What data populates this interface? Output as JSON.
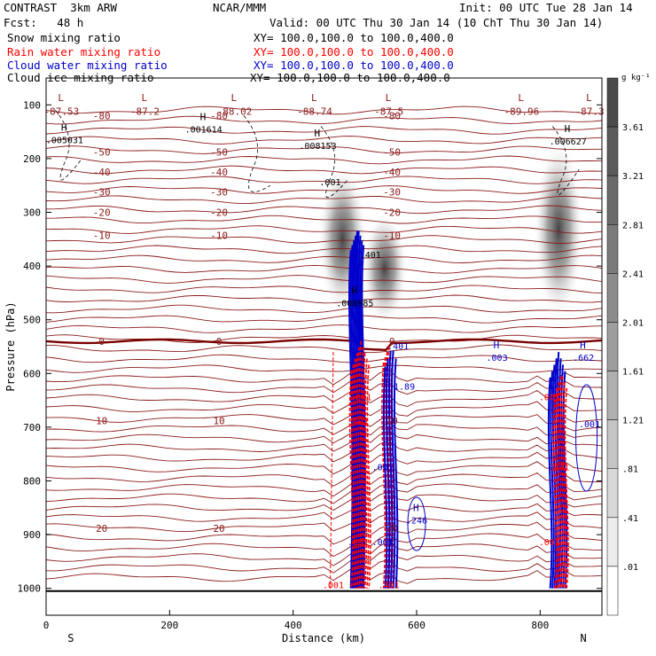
{
  "header": {
    "experiment": "CONTRAST  3km ARW",
    "forecast": "Fcst:   48 h",
    "center": "NCAR/MMM",
    "init": "Init: 00 UTC Tue 28 Jan 14",
    "valid": "Valid: 00 UTC Thu 30 Jan 14 (10 ChT Thu 30 Jan 14)"
  },
  "fields": [
    {
      "label": "Snow mixing ratio",
      "xy": "XY= 100.0,100.0 to 100.0,400.0",
      "color": "#000000"
    },
    {
      "label": "Rain water mixing ratio",
      "xy": "XY= 100.0,100.0 to 100.0,400.0",
      "color": "#ff0000"
    },
    {
      "label": "Cloud water mixing ratio",
      "xy": "XY= 100.0,100.0 to 100.0,400.0",
      "color": "#0000cc"
    },
    {
      "label": "Cloud ice mixing ratio",
      "xy": "XY= 100.0,100.0 to 100.0,400.0",
      "color": "#000000"
    }
  ],
  "chart_data": {
    "type": "heatmap",
    "xlabel": "Distance (km)",
    "ylabel": "Pressure (hPa)",
    "xlim": [
      0,
      900
    ],
    "ylim": [
      1050,
      50
    ],
    "x_ticks": [
      "0",
      "200",
      "400",
      "600",
      "800"
    ],
    "y_ticks": [
      "100",
      "200",
      "300",
      "400",
      "500",
      "600",
      "700",
      "800",
      "900",
      "1000"
    ],
    "x_end_labels": {
      "left": "S",
      "right": "N"
    },
    "colorbar": {
      "unit": "g kg⁻¹",
      "levels": [
        "3.61",
        "3.21",
        "2.81",
        "2.41",
        "2.01",
        "1.61",
        "1.21",
        ".81",
        ".41",
        ".01"
      ],
      "colors": [
        "#4a4a4a",
        "#5a5a5a",
        "#6a6a6a",
        "#7b7b7b",
        "#8c8c8c",
        "#9e9e9e",
        "#b0b0b0",
        "#c4c4c4",
        "#d8d8d8",
        "#ececec",
        "#ffffff"
      ]
    },
    "temperature_contours": [
      {
        "label": "-80",
        "p": 120
      },
      {
        "label": "-50",
        "p": 188
      },
      {
        "label": "-40",
        "p": 225
      },
      {
        "label": "-30",
        "p": 262
      },
      {
        "label": "-20",
        "p": 300
      },
      {
        "label": "-10",
        "p": 343
      },
      {
        "label": "0",
        "p": 540
      },
      {
        "label": "10",
        "p": 688
      },
      {
        "label": "20",
        "p": 888
      }
    ],
    "low_labels": [
      {
        "x": 25,
        "label": "-87.53"
      },
      {
        "x": 160,
        "label": "-87.2"
      },
      {
        "x": 305,
        "label": "-88.02"
      },
      {
        "x": 435,
        "label": "-88.74"
      },
      {
        "x": 555,
        "label": "-87.5"
      },
      {
        "x": 770,
        "label": "-89.96"
      },
      {
        "x": 880,
        "label": "-87.3"
      }
    ],
    "high_labels": [
      {
        "x": 30,
        "p": 165,
        "label": ".005031",
        "color": "#000000"
      },
      {
        "x": 255,
        "p": 145,
        "label": ".001614",
        "color": "#000000"
      },
      {
        "x": 440,
        "p": 175,
        "label": ".008153",
        "color": "#000000"
      },
      {
        "x": 845,
        "p": 167,
        "label": ".006627",
        "color": "#000000"
      },
      {
        "x": 500,
        "p": 468,
        "label": ".008985",
        "color": "#000000"
      },
      {
        "x": 730,
        "p": 570,
        "label": ".003",
        "color": "#0000cc"
      },
      {
        "x": 870,
        "p": 570,
        "label": ".662",
        "color": "#0000cc"
      },
      {
        "x": 600,
        "p": 873,
        "label": ".246",
        "color": "#0000cc"
      }
    ],
    "snow_columns": [
      {
        "x": 480,
        "p_top": 210,
        "p_bot": 490,
        "peak": 3.4
      },
      {
        "x": 548,
        "p_top": 300,
        "p_bot": 510,
        "peak": 3.0
      },
      {
        "x": 830,
        "p_top": 165,
        "p_bot": 500,
        "peak": 3.6
      }
    ],
    "extra_labels": [
      {
        "x": 460,
        "p": 250,
        "text": ".001",
        "color": "#000000"
      },
      {
        "x": 525,
        "p": 385,
        "text": ".401",
        "color": "#000000"
      },
      {
        "x": 570,
        "p": 555,
        "text": ".401",
        "color": "#0000cc"
      },
      {
        "x": 580,
        "p": 630,
        "text": "1.89",
        "color": "#0000cc"
      },
      {
        "x": 510,
        "p": 650,
        "text": ".801",
        "color": "#ff0000"
      },
      {
        "x": 505,
        "p": 695,
        "text": ".401",
        "color": "#ff0000"
      },
      {
        "x": 545,
        "p": 780,
        "text": ".001",
        "color": "#0000cc"
      },
      {
        "x": 545,
        "p": 920,
        "text": ".001",
        "color": "#0000cc"
      },
      {
        "x": 505,
        "p": 920,
        "text": ".001",
        "color": "#ff0000"
      },
      {
        "x": 555,
        "p": 1000,
        "text": ".401",
        "color": "#ff0000"
      },
      {
        "x": 465,
        "p": 1000,
        "text": ".001",
        "color": "#ff0000"
      },
      {
        "x": 815,
        "p": 650,
        "text": ".001",
        "color": "#ff0000"
      },
      {
        "x": 830,
        "p": 780,
        "text": ".401",
        "color": "#ff0000"
      },
      {
        "x": 815,
        "p": 920,
        "text": ".001",
        "color": "#ff0000"
      },
      {
        "x": 880,
        "p": 700,
        "text": ".001",
        "color": "#0000cc"
      }
    ]
  }
}
